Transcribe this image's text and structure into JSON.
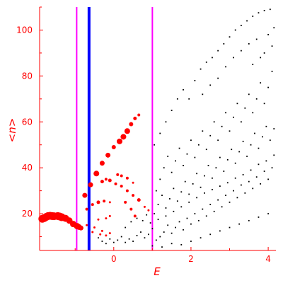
{
  "chart_data": {
    "type": "scatter",
    "title": "",
    "xlabel": "E",
    "ylabel": "<n>",
    "xlim": [
      -1.92,
      4.2
    ],
    "ylim": [
      4,
      110
    ],
    "xticks": [
      "0",
      "2",
      "4"
    ],
    "xtick_values": [
      0,
      2,
      4
    ],
    "yticks": [
      "20",
      "40",
      "60",
      "80",
      "100"
    ],
    "ytick_values": [
      20,
      40,
      60,
      80,
      100
    ],
    "grid": false,
    "colors": {
      "axes": "#ff0000",
      "regular_points": "#ff0000",
      "chaotic_points": "#000000",
      "boundary_lines": "#ff00ff",
      "center_line": "#0000ff"
    },
    "vertical_lines": [
      {
        "x": -0.96,
        "color": "#ff00ff"
      },
      {
        "x": -0.64,
        "color": "#0000ff"
      },
      {
        "x": 1.0,
        "color": "#ff00ff"
      }
    ],
    "series": [
      {
        "color": "#ff0000",
        "marker": "circle",
        "points": [
          [
            -1.85,
            17.8
          ],
          [
            -1.8,
            18.1
          ],
          [
            -1.75,
            18.6
          ],
          [
            -1.7,
            19.0
          ],
          [
            -1.65,
            19.1
          ],
          [
            -1.6,
            19.0
          ],
          [
            -1.55,
            18.9
          ],
          [
            -1.45,
            19.0
          ],
          [
            -1.4,
            18.8
          ],
          [
            -1.35,
            18.5
          ],
          [
            -1.25,
            18.0
          ],
          [
            -1.15,
            17.0
          ],
          [
            -1.05,
            15.5
          ],
          [
            -0.95,
            14.6
          ],
          [
            -0.9,
            14.2
          ],
          [
            -0.85,
            13.8
          ],
          [
            -0.75,
            28.0
          ],
          [
            -0.6,
            32.6
          ],
          [
            -0.45,
            37.5
          ],
          [
            -0.3,
            42.0
          ],
          [
            -0.15,
            45.5
          ],
          [
            0.0,
            49.0
          ],
          [
            0.15,
            51.5
          ],
          [
            0.25,
            53.5
          ],
          [
            0.35,
            56.0
          ],
          [
            0.45,
            59.0
          ],
          [
            0.55,
            61.5
          ],
          [
            0.65,
            63.0
          ],
          [
            -0.3,
            34.0
          ],
          [
            -0.2,
            35.0
          ],
          [
            -0.1,
            34.5
          ],
          [
            0.05,
            33.0
          ],
          [
            0.2,
            32.0
          ],
          [
            0.35,
            30.0
          ],
          [
            0.5,
            28.0
          ],
          [
            0.65,
            26.0
          ],
          [
            0.8,
            23.0
          ],
          [
            0.1,
            37.0
          ],
          [
            0.2,
            36.5
          ],
          [
            0.35,
            35.5
          ],
          [
            0.5,
            33.5
          ],
          [
            -0.7,
            22.0
          ],
          [
            -0.55,
            24.0
          ],
          [
            -0.4,
            25.0
          ],
          [
            -0.25,
            25.5
          ],
          [
            -0.1,
            25.0
          ],
          [
            0.3,
            25.0
          ],
          [
            0.45,
            22.0
          ],
          [
            0.55,
            19.0
          ],
          [
            0.9,
            21.5
          ],
          [
            -0.4,
            17.5
          ],
          [
            -0.2,
            18.0
          ],
          [
            -0.1,
            19.0
          ],
          [
            -0.7,
            15.0
          ],
          [
            -0.5,
            14.0
          ],
          [
            -0.3,
            12.5
          ],
          [
            -0.1,
            11.5
          ],
          [
            -0.55,
            12.0
          ],
          [
            -0.35,
            11.0
          ],
          [
            -0.2,
            10.5
          ]
        ],
        "sizes": [
          5.5,
          5.5,
          5.5,
          5.5,
          5.5,
          5.5,
          5.5,
          5.5,
          5.5,
          5.5,
          5.0,
          4.5,
          4.5,
          4.5,
          4.0,
          3.5,
          3.5,
          3.5,
          4.0,
          3.5,
          3.5,
          3.0,
          4.0,
          4.0,
          4.0,
          3.0,
          2.5,
          2.0,
          2.5,
          2.0,
          2.5,
          2.0,
          2.0,
          2.0,
          2.0,
          2.5,
          1.5,
          2.0,
          2.0,
          2.0,
          1.5,
          2.0,
          2.0,
          2.5,
          2.0,
          1.5,
          2.0,
          2.0,
          2.0,
          1.5,
          1.5,
          1.5,
          1.5,
          1.5,
          1.5,
          1.5,
          1.5,
          1.5,
          1.5,
          1.5
        ]
      },
      {
        "color": "#000000",
        "marker": "dot",
        "points": [
          [
            -0.4,
            9.5
          ],
          [
            -0.3,
            8.0
          ],
          [
            -0.2,
            7.0
          ],
          [
            -0.1,
            9.0
          ],
          [
            0.0,
            7.5
          ],
          [
            0.1,
            8.5
          ],
          [
            0.2,
            10.0
          ],
          [
            0.3,
            7.5
          ],
          [
            0.4,
            9.0
          ],
          [
            0.5,
            8.0
          ],
          [
            0.6,
            10.5
          ],
          [
            0.7,
            12.0
          ],
          [
            0.8,
            9.5
          ],
          [
            0.9,
            11.0
          ],
          [
            1.0,
            13.5
          ],
          [
            1.1,
            8.5
          ],
          [
            1.2,
            10.0
          ],
          [
            1.3,
            12.0
          ],
          [
            1.4,
            15.0
          ],
          [
            1.5,
            11.5
          ],
          [
            1.6,
            14.0
          ],
          [
            1.7,
            16.5
          ],
          [
            1.8,
            13.0
          ],
          [
            1.9,
            18.0
          ],
          [
            2.0,
            15.5
          ],
          [
            2.1,
            20.0
          ],
          [
            2.2,
            17.0
          ],
          [
            2.3,
            22.0
          ],
          [
            2.4,
            19.0
          ],
          [
            2.5,
            24.0
          ],
          [
            2.6,
            21.0
          ],
          [
            2.7,
            26.0
          ],
          [
            2.8,
            23.0
          ],
          [
            2.9,
            28.0
          ],
          [
            3.0,
            25.0
          ],
          [
            3.1,
            30.0
          ],
          [
            3.2,
            27.0
          ],
          [
            3.3,
            32.5
          ],
          [
            3.4,
            29.0
          ],
          [
            3.5,
            34.0
          ],
          [
            3.6,
            31.0
          ],
          [
            3.7,
            36.0
          ],
          [
            3.8,
            33.0
          ],
          [
            3.9,
            38.5
          ],
          [
            4.0,
            35.0
          ],
          [
            4.1,
            40.0
          ],
          [
            1.05,
            20.0
          ],
          [
            1.15,
            24.0
          ],
          [
            1.25,
            28.0
          ],
          [
            1.35,
            22.5
          ],
          [
            1.45,
            26.5
          ],
          [
            1.55,
            31.0
          ],
          [
            1.65,
            25.5
          ],
          [
            1.75,
            29.5
          ],
          [
            1.85,
            34.0
          ],
          [
            1.95,
            28.5
          ],
          [
            2.05,
            33.0
          ],
          [
            2.15,
            37.5
          ],
          [
            2.25,
            31.5
          ],
          [
            2.35,
            36.5
          ],
          [
            2.45,
            41.0
          ],
          [
            2.55,
            35.5
          ],
          [
            2.65,
            40.0
          ],
          [
            2.75,
            44.5
          ],
          [
            2.85,
            38.5
          ],
          [
            2.95,
            43.5
          ],
          [
            3.05,
            48.0
          ],
          [
            3.15,
            42.0
          ],
          [
            3.25,
            47.0
          ],
          [
            3.35,
            51.5
          ],
          [
            3.45,
            45.0
          ],
          [
            3.55,
            50.0
          ],
          [
            3.65,
            55.0
          ],
          [
            3.75,
            48.5
          ],
          [
            3.85,
            53.5
          ],
          [
            3.95,
            58.0
          ],
          [
            4.05,
            52.0
          ],
          [
            4.15,
            57.0
          ],
          [
            1.1,
            30.0
          ],
          [
            1.2,
            35.0
          ],
          [
            1.3,
            40.0
          ],
          [
            1.4,
            45.0
          ],
          [
            1.5,
            38.0
          ],
          [
            1.6,
            43.0
          ],
          [
            1.7,
            48.5
          ],
          [
            1.8,
            41.0
          ],
          [
            1.9,
            46.0
          ],
          [
            2.0,
            52.0
          ],
          [
            2.1,
            44.5
          ],
          [
            2.2,
            50.0
          ],
          [
            2.3,
            56.0
          ],
          [
            2.4,
            48.0
          ],
          [
            2.5,
            54.0
          ],
          [
            2.6,
            60.0
          ],
          [
            2.7,
            52.0
          ],
          [
            2.8,
            58.0
          ],
          [
            2.9,
            64.0
          ],
          [
            3.0,
            56.0
          ],
          [
            3.1,
            62.0
          ],
          [
            3.2,
            68.0
          ],
          [
            3.3,
            60.0
          ],
          [
            3.4,
            66.0
          ],
          [
            3.5,
            72.0
          ],
          [
            3.6,
            64.0
          ],
          [
            3.7,
            70.0
          ],
          [
            3.8,
            77.0
          ],
          [
            3.9,
            68.0
          ],
          [
            4.0,
            75.0
          ],
          [
            4.1,
            82.0
          ],
          [
            1.05,
            50.0
          ],
          [
            1.2,
            55.0
          ],
          [
            1.35,
            60.0
          ],
          [
            1.5,
            65.0
          ],
          [
            1.65,
            70.0
          ],
          [
            1.8,
            74.0
          ],
          [
            1.95,
            70.0
          ],
          [
            2.1,
            78.0
          ],
          [
            2.25,
            83.0
          ],
          [
            2.4,
            86.0
          ],
          [
            2.55,
            88.0
          ],
          [
            2.7,
            91.0
          ],
          [
            2.85,
            94.0
          ],
          [
            3.0,
            97.0
          ],
          [
            3.15,
            100.0
          ],
          [
            3.3,
            102.0
          ],
          [
            3.45,
            104.0
          ],
          [
            3.6,
            106.0
          ],
          [
            3.75,
            107.5
          ],
          [
            3.9,
            108.5
          ],
          [
            4.05,
            109.0
          ],
          [
            4.15,
            101.0
          ],
          [
            2.3,
            72.0
          ],
          [
            2.5,
            76.0
          ],
          [
            2.7,
            79.0
          ],
          [
            2.9,
            84.0
          ],
          [
            3.1,
            88.0
          ],
          [
            3.3,
            91.0
          ],
          [
            3.5,
            94.0
          ],
          [
            3.7,
            96.0
          ],
          [
            3.9,
            90.0
          ],
          [
            4.1,
            93.0
          ],
          [
            3.6,
            85.0
          ],
          [
            3.8,
            88.0
          ],
          [
            4.0,
            98.0
          ],
          [
            0.3,
            14.0
          ],
          [
            0.45,
            16.5
          ],
          [
            0.6,
            18.0
          ],
          [
            0.75,
            17.0
          ],
          [
            0.85,
            19.5
          ],
          [
            0.95,
            16.0
          ],
          [
            1.15,
            17.5
          ],
          [
            1.35,
            19.0
          ],
          [
            1.55,
            21.0
          ],
          [
            1.75,
            23.0
          ],
          [
            1.95,
            25.0
          ],
          [
            2.15,
            27.0
          ],
          [
            2.35,
            29.0
          ],
          [
            2.55,
            30.5
          ],
          [
            2.75,
            32.0
          ],
          [
            2.95,
            33.5
          ],
          [
            3.15,
            35.5
          ],
          [
            3.35,
            37.0
          ],
          [
            3.55,
            39.0
          ],
          [
            3.75,
            41.5
          ],
          [
            3.95,
            43.0
          ],
          [
            4.15,
            45.5
          ],
          [
            1.0,
            6.0
          ],
          [
            1.25,
            5.5
          ],
          [
            1.5,
            7.0
          ],
          [
            1.75,
            6.5
          ],
          [
            2.0,
            8.0
          ],
          [
            2.25,
            9.5
          ],
          [
            2.5,
            11.0
          ],
          [
            2.75,
            12.5
          ],
          [
            3.0,
            14.0
          ],
          [
            3.25,
            15.5
          ],
          [
            3.5,
            17.0
          ],
          [
            3.75,
            18.5
          ],
          [
            4.0,
            20.0
          ]
        ]
      }
    ]
  }
}
